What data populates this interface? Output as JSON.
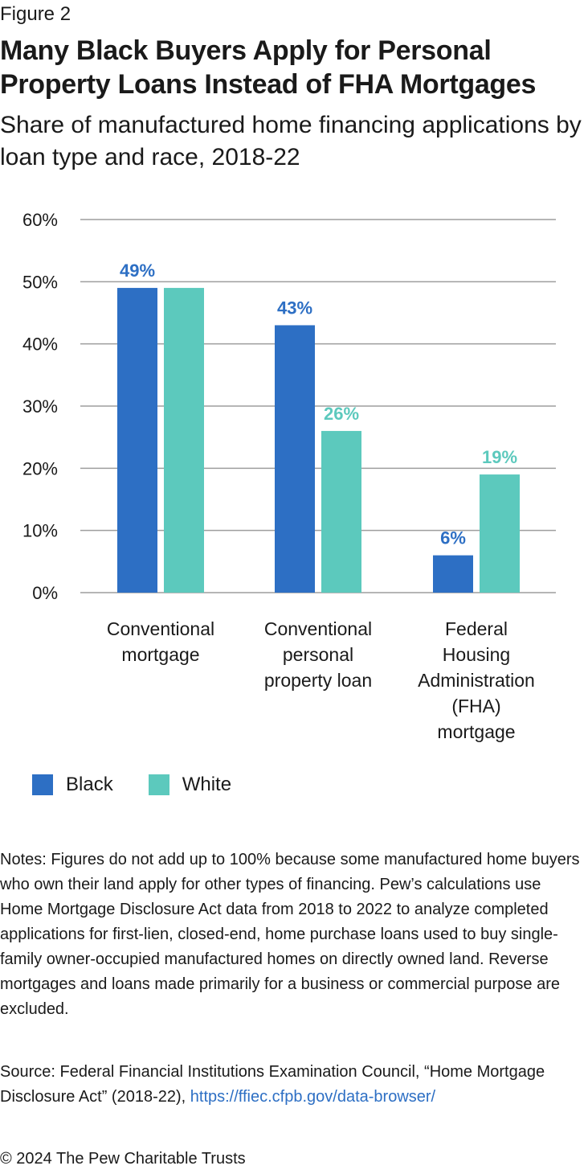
{
  "figure_label": "Figure 2",
  "title": "Many Black Buyers Apply for Personal Property Loans Instead of FHA Mortgages",
  "subtitle": "Share of manufactured home financing applications by loan type and race, 2018-22",
  "colors": {
    "black_series": "#2d6fc4",
    "white_series": "#5cc9bd",
    "grid": "#9e9e9e",
    "link": "#2d6fc4"
  },
  "chart_data": {
    "type": "bar",
    "title": "",
    "xlabel": "",
    "ylabel": "",
    "ylim": [
      0,
      60
    ],
    "yticks": [
      "0%",
      "10%",
      "20%",
      "30%",
      "40%",
      "50%",
      "60%"
    ],
    "grid": true,
    "legend_position": "bottom-left",
    "categories": [
      [
        "Conventional",
        "mortgage"
      ],
      [
        "Conventional",
        "personal",
        "property loan"
      ],
      [
        "Federal",
        "Housing",
        "Administration",
        "(FHA)",
        "mortgage"
      ]
    ],
    "series": [
      {
        "name": "Black",
        "values": [
          49,
          43,
          6
        ],
        "labels": [
          "49%",
          "43%",
          "6%"
        ],
        "show_labels": [
          true,
          true,
          true
        ]
      },
      {
        "name": "White",
        "values": [
          49,
          26,
          19
        ],
        "labels": [
          "49%",
          "26%",
          "19%"
        ],
        "show_labels": [
          false,
          true,
          true
        ]
      }
    ]
  },
  "legend": {
    "black": "Black",
    "white": "White"
  },
  "notes": "Notes: Figures do not add up to 100% because some manufactured home buyers who own their land apply for other types of financing. Pew’s calculations use Home Mortgage Disclosure Act data from 2018 to 2022 to analyze completed applications for first-lien, closed-end, home purchase loans used to buy single-family owner-occupied manufactured homes on directly owned land. Reverse mortgages and loans made primarily for a business or commercial purpose are excluded.",
  "source_text": "Source: Federal Financial Institutions Examination Council, “Home Mortgage Disclosure Act” (2018-22), ",
  "source_link": "https://ffiec.cfpb.gov/data-browser/",
  "copyright": "© 2024 The Pew Charitable Trusts"
}
